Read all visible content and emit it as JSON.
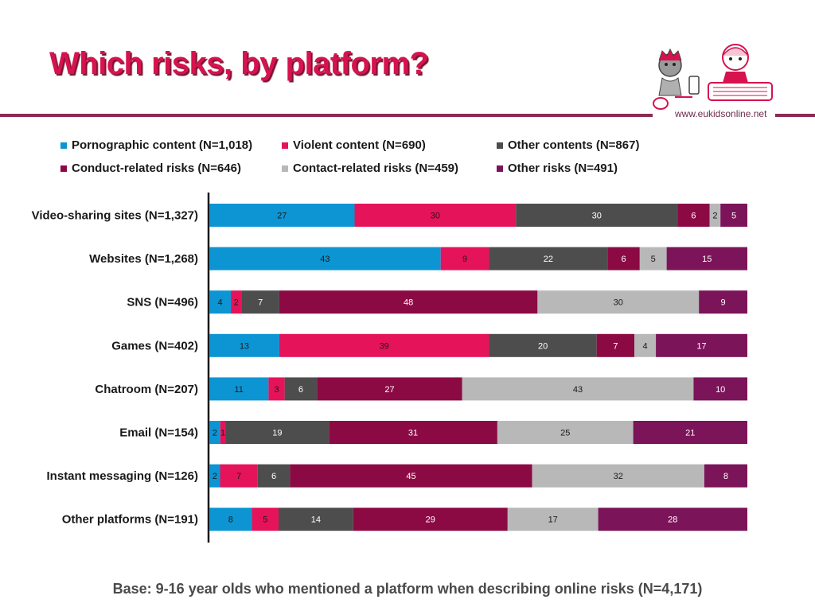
{
  "title": "Which risks, by platform?",
  "site_url": "www.eukidsonline.net",
  "footnote": "Base: 9-16 year olds who mentioned a platform when describing online risks (N=4,171)",
  "logo": {
    "icon": "eukidsonline-kids-logo"
  },
  "colors": {
    "title": "#d6134f",
    "rule": "#8a2b55"
  },
  "chart_data": {
    "type": "bar",
    "orientation": "horizontal",
    "stacked": true,
    "xlim": [
      0,
      100
    ],
    "legend_position": "top",
    "categories": [
      "Video-sharing sites (N=1,327)",
      "Websites (N=1,268)",
      "SNS (N=496)",
      "Games (N=402)",
      "Chatroom (N=207)",
      "Email (N=154)",
      "Instant messaging (N=126)",
      "Other platforms (N=191)"
    ],
    "series": [
      {
        "name": "Pornographic content (N=1,018)",
        "color": "#0d95d3",
        "label_color": "#1a1a1a",
        "values": [
          27,
          43,
          4,
          13,
          11,
          2,
          2,
          8
        ]
      },
      {
        "name": "Violent content (N=690)",
        "color": "#e5135a",
        "label_color": "#1a1a1a",
        "values": [
          30,
          9,
          2,
          39,
          3,
          1,
          7,
          5
        ]
      },
      {
        "name": "Other contents (N=867)",
        "color": "#4d4d4d",
        "label_color": "#ffffff",
        "values": [
          30,
          22,
          7,
          20,
          6,
          19,
          6,
          14
        ]
      },
      {
        "name": "Conduct-related risks (N=646)",
        "color": "#8c0a43",
        "label_color": "#ffffff",
        "values": [
          6,
          6,
          48,
          7,
          27,
          31,
          45,
          29
        ]
      },
      {
        "name": "Contact-related risks (N=459)",
        "color": "#b8b8b8",
        "label_color": "#1a1a1a",
        "values": [
          2,
          5,
          30,
          4,
          43,
          25,
          32,
          17
        ]
      },
      {
        "name": "Other risks (N=491)",
        "color": "#7b1459",
        "label_color": "#ffffff",
        "values": [
          5,
          15,
          9,
          17,
          10,
          21,
          8,
          28
        ]
      }
    ]
  }
}
